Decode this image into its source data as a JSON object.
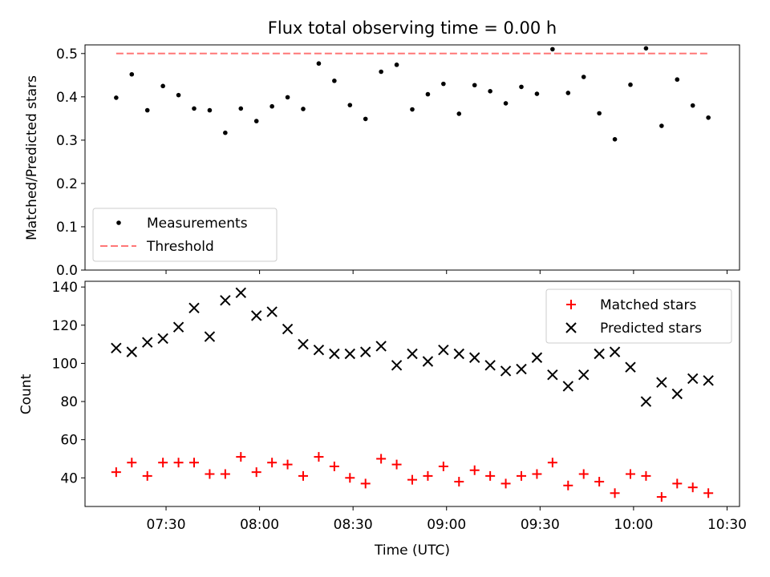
{
  "chart_data": [
    {
      "type": "scatter",
      "title": "Flux total observing time = 0.00 h",
      "xlabel": "",
      "ylabel": "Matched/Predicted stars",
      "ylim": [
        0,
        0.52
      ],
      "yticks": [
        0.0,
        0.1,
        0.2,
        0.3,
        0.4,
        0.5
      ],
      "ytick_labels": [
        "0.0",
        "0.1",
        "0.2",
        "0.3",
        "0.4",
        "0.5"
      ],
      "legend_position": "lower-left",
      "series": [
        {
          "name": "Measurements",
          "marker": "dot",
          "color": "#000000",
          "values": [
            0.398,
            0.452,
            0.369,
            0.425,
            0.404,
            0.373,
            0.369,
            0.317,
            0.373,
            0.344,
            0.378,
            0.399,
            0.372,
            0.477,
            0.437,
            0.381,
            0.349,
            0.458,
            0.474,
            0.371,
            0.406,
            0.43,
            0.361,
            0.427,
            0.413,
            0.385,
            0.423,
            0.407,
            0.51,
            0.409,
            0.446,
            0.362,
            0.302,
            0.428,
            0.512,
            0.333,
            0.44,
            0.38,
            0.352
          ]
        },
        {
          "name": "Threshold",
          "marker": "dashed-line",
          "color": "#ff7777",
          "value": 0.5
        }
      ]
    },
    {
      "type": "scatter",
      "title": "",
      "xlabel": "Time (UTC)",
      "ylabel": "Count",
      "ylim": [
        25,
        143
      ],
      "yticks": [
        40,
        60,
        80,
        100,
        120,
        140
      ],
      "ytick_labels": [
        "40",
        "60",
        "80",
        "100",
        "120",
        "140"
      ],
      "legend_position": "upper-right",
      "series": [
        {
          "name": "Matched stars",
          "marker": "plus",
          "color": "#ff0000",
          "values": [
            43,
            48,
            41,
            48,
            48,
            48,
            42,
            42,
            51,
            43,
            48,
            47,
            41,
            51,
            46,
            40,
            37,
            50,
            47,
            39,
            41,
            46,
            38,
            44,
            41,
            37,
            41,
            42,
            48,
            36,
            42,
            38,
            32,
            42,
            41,
            30,
            37,
            35,
            32
          ]
        },
        {
          "name": "Predicted stars",
          "marker": "x",
          "color": "#000000",
          "values": [
            108,
            106,
            111,
            113,
            119,
            129,
            114,
            133,
            137,
            125,
            127,
            118,
            110,
            107,
            105,
            105,
            106,
            109,
            99,
            105,
            101,
            107,
            105,
            103,
            99,
            96,
            97,
            103,
            94,
            88,
            94,
            105,
            106,
            98,
            80,
            90,
            84,
            92,
            91
          ]
        }
      ]
    }
  ],
  "x_axis": {
    "minutes_since_midnight": [
      434,
      439,
      444,
      449,
      454,
      459,
      464,
      469,
      474,
      479,
      484,
      489,
      494,
      499,
      504,
      509,
      514,
      519,
      524,
      529,
      534,
      539,
      544,
      549,
      554,
      559,
      564,
      569,
      574,
      579,
      584,
      589,
      594,
      599,
      604,
      609,
      614,
      619,
      624
    ],
    "xlim_minutes": [
      424,
      634
    ],
    "ticks_minutes": [
      450,
      480,
      510,
      540,
      570,
      600,
      630
    ],
    "tick_labels": [
      "07:30",
      "08:00",
      "08:30",
      "09:00",
      "09:30",
      "10:00",
      "10:30"
    ]
  }
}
